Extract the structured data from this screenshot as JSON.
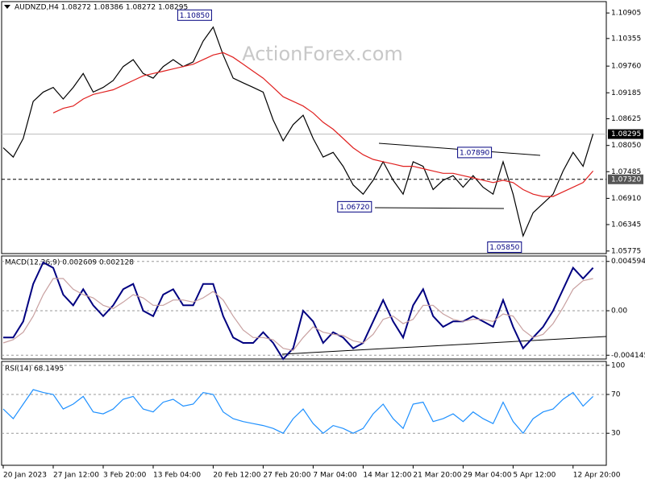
{
  "chart_data": [
    {
      "type": "line",
      "title": "AUDNZD,H4  1.08272 1.08386 1.08272 1.08295",
      "watermark": "ActionForex.com",
      "categories": [
        "20 Jan 2023",
        null,
        null,
        null,
        null,
        "27 Jan 12:00",
        null,
        null,
        null,
        null,
        "3 Feb 20:00",
        null,
        null,
        null,
        null,
        "13 Feb 04:00",
        null,
        null,
        null,
        null,
        null,
        "20 Feb 12:00",
        null,
        null,
        null,
        null,
        "27 Feb 20:00",
        null,
        null,
        null,
        null,
        "7 Mar 04:00",
        null,
        null,
        null,
        null,
        "14 Mar 12:00",
        null,
        null,
        null,
        null,
        "21 Mar 20:00",
        null,
        null,
        null,
        null,
        "29 Mar 04:00",
        null,
        null,
        null,
        null,
        "5 Apr 12:00",
        null,
        null,
        null,
        null,
        null,
        "12 Apr 20:00",
        null,
        null
      ],
      "series": [
        {
          "color": "#000000",
          "values": [
            1.08,
            1.078,
            1.082,
            1.09,
            1.092,
            1.093,
            1.0905,
            1.093,
            1.096,
            1.092,
            1.093,
            1.0945,
            1.0975,
            1.099,
            1.096,
            1.095,
            1.0975,
            1.099,
            1.0975,
            1.0985,
            1.103,
            1.106,
            1.1,
            1.095,
            1.094,
            1.093,
            1.092,
            1.086,
            1.0815,
            1.085,
            1.087,
            1.082,
            1.078,
            1.079,
            1.076,
            1.072,
            1.07,
            1.073,
            1.077,
            1.073,
            1.07,
            1.077,
            1.076,
            1.071,
            1.073,
            1.074,
            1.0715,
            1.074,
            1.0715,
            1.07,
            1.077,
            1.07,
            1.061,
            1.066,
            1.068,
            1.07,
            1.075,
            1.079,
            1.076,
            1.083
          ]
        },
        {
          "color": "#e0201f",
          "values": [
            null,
            null,
            null,
            null,
            null,
            1.0875,
            1.0885,
            1.089,
            1.0905,
            1.0915,
            1.092,
            1.0925,
            1.0935,
            1.0945,
            1.0955,
            1.096,
            1.0965,
            1.097,
            1.0975,
            1.098,
            1.099,
            1.1,
            1.1005,
            1.0995,
            1.098,
            1.0965,
            1.095,
            1.093,
            1.091,
            1.09,
            1.089,
            1.0875,
            1.0855,
            1.084,
            1.082,
            1.08,
            1.0785,
            1.0775,
            1.077,
            1.0765,
            1.076,
            1.076,
            1.0755,
            1.075,
            1.0745,
            1.0745,
            1.074,
            1.0735,
            1.073,
            1.0725,
            1.073,
            1.0725,
            1.071,
            1.07,
            1.0695,
            1.0695,
            1.0705,
            1.0715,
            1.0725,
            1.075
          ]
        }
      ],
      "ylim": [
        1.0572,
        1.1115
      ],
      "yticks": [
        1.10905,
        1.10355,
        {
          "value": 1.0976,
          "label": "1.09760"
        },
        1.09185,
        1.08625,
        {
          "value": 1.0805,
          "label": "1.08050"
        },
        1.07485,
        {
          "value": 1.0691,
          "label": "1.06910"
        },
        1.06345,
        1.05775
      ],
      "grid": false,
      "hlines": [
        {
          "value": 1.08295,
          "label": "1.08295"
        },
        {
          "value": 1.0732,
          "label": "1.07320"
        }
      ],
      "annotations": [
        {
          "value": 1.1085,
          "label": "1.10850",
          "x": 21
        },
        {
          "value": 1.0789,
          "label": "1.07890",
          "x": 49
        },
        {
          "value": 1.0672,
          "label": "1.06720",
          "x": 37
        },
        {
          "value": 1.0585,
          "label": "1.05850",
          "x": 52
        }
      ]
    },
    {
      "type": "line",
      "title": "MACD(12,26,9) 0.002609 0.002128",
      "series": [
        {
          "color": "#000080",
          "values": [
            -0.0025,
            -0.0025,
            -0.001,
            0.0025,
            0.0045,
            0.004,
            0.0015,
            0.0005,
            0.002,
            0.0005,
            -0.0005,
            0.0005,
            0.002,
            0.0025,
            0.0,
            -0.0005,
            0.0015,
            0.002,
            0.0005,
            0.0005,
            0.0025,
            0.0025,
            -0.0005,
            -0.0025,
            -0.003,
            -0.003,
            -0.002,
            -0.003,
            -0.0045,
            -0.0035,
            0.0,
            -0.001,
            -0.003,
            -0.002,
            -0.0025,
            -0.0035,
            -0.003,
            -0.001,
            0.001,
            -0.001,
            -0.0025,
            0.0005,
            0.002,
            -0.0005,
            -0.0015,
            -0.001,
            -0.001,
            -0.0005,
            -0.001,
            -0.0015,
            0.001,
            -0.0015,
            -0.0035,
            -0.0025,
            -0.0015,
            0.0,
            0.002,
            0.004,
            0.003,
            0.004
          ]
        },
        {
          "color": "#c8a0a0",
          "values": [
            -0.003,
            -0.0027,
            -0.002,
            -0.0005,
            0.0015,
            0.003,
            0.003,
            0.002,
            0.0015,
            0.0012,
            0.0005,
            0.0002,
            0.0008,
            0.0015,
            0.0012,
            0.0005,
            0.0005,
            0.001,
            0.001,
            0.0008,
            0.0012,
            0.0018,
            0.001,
            -0.0005,
            -0.0018,
            -0.0025,
            -0.0025,
            -0.0027,
            -0.0035,
            -0.0037,
            -0.0025,
            -0.0015,
            -0.002,
            -0.0022,
            -0.0023,
            -0.0028,
            -0.003,
            -0.0022,
            -0.0008,
            -0.0005,
            -0.0012,
            -0.0008,
            0.0005,
            0.0005,
            -0.0003,
            -0.0008,
            -0.001,
            -0.0008,
            -0.0008,
            -0.001,
            -0.0003,
            -0.0005,
            -0.0018,
            -0.0025,
            -0.0022,
            -0.0012,
            0.0003,
            0.002,
            0.0028,
            0.003
          ]
        }
      ],
      "ylim": [
        -0.0045,
        0.0051
      ],
      "yticks": [
        0.004594,
        {
          "value": 0,
          "label": "0.00"
        },
        -0.004145
      ],
      "grid": true
    },
    {
      "type": "line",
      "title": "RSI(14) 68.1495",
      "series": [
        {
          "color": "#1e90ff",
          "values": [
            55,
            45,
            60,
            75,
            72,
            70,
            55,
            60,
            68,
            52,
            50,
            55,
            65,
            68,
            55,
            52,
            62,
            65,
            58,
            60,
            72,
            70,
            52,
            45,
            42,
            40,
            38,
            35,
            30,
            45,
            55,
            40,
            30,
            38,
            35,
            30,
            35,
            50,
            60,
            45,
            35,
            60,
            62,
            42,
            45,
            50,
            42,
            52,
            45,
            40,
            62,
            42,
            30,
            45,
            52,
            55,
            65,
            72,
            58,
            68
          ]
        }
      ],
      "ylim": [
        -3,
        104
      ],
      "yticks": [
        100,
        70,
        30
      ],
      "grid": true
    }
  ]
}
